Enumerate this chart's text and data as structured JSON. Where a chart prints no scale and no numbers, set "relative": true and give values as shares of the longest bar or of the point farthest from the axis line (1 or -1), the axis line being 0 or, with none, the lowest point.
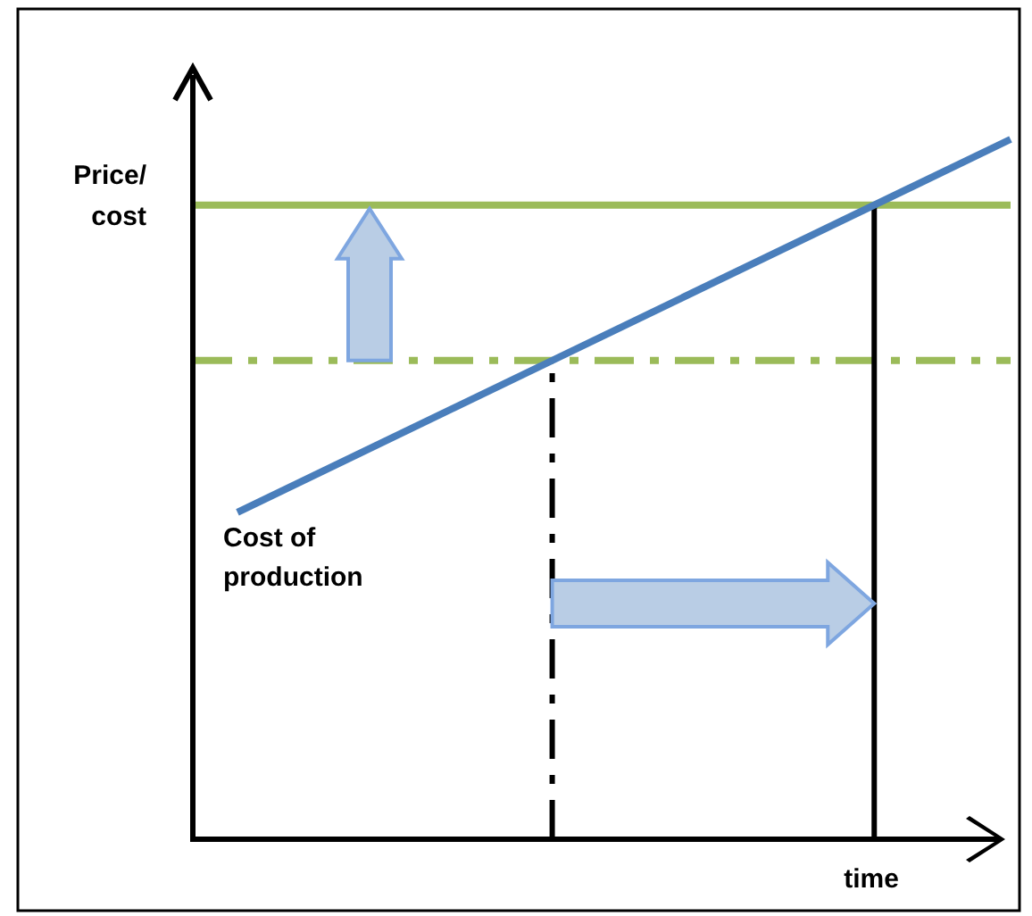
{
  "chart_data": {
    "type": "line",
    "relative": true,
    "xlabel": "time",
    "ylabel": "Price/\ncost",
    "categories": [
      null,
      null
    ],
    "series": [
      {
        "name": "Cost of production",
        "color": "#4a7ebb",
        "values": [
          0.467,
          1
        ]
      }
    ],
    "ref_lines": [
      {
        "axis": "y",
        "value": 0.906,
        "color": "#9bbb59",
        "line_style": "solid"
      },
      {
        "axis": "y",
        "value": 0.684,
        "color": "#9bbb59",
        "line_style": "dashed"
      }
    ]
  }
}
